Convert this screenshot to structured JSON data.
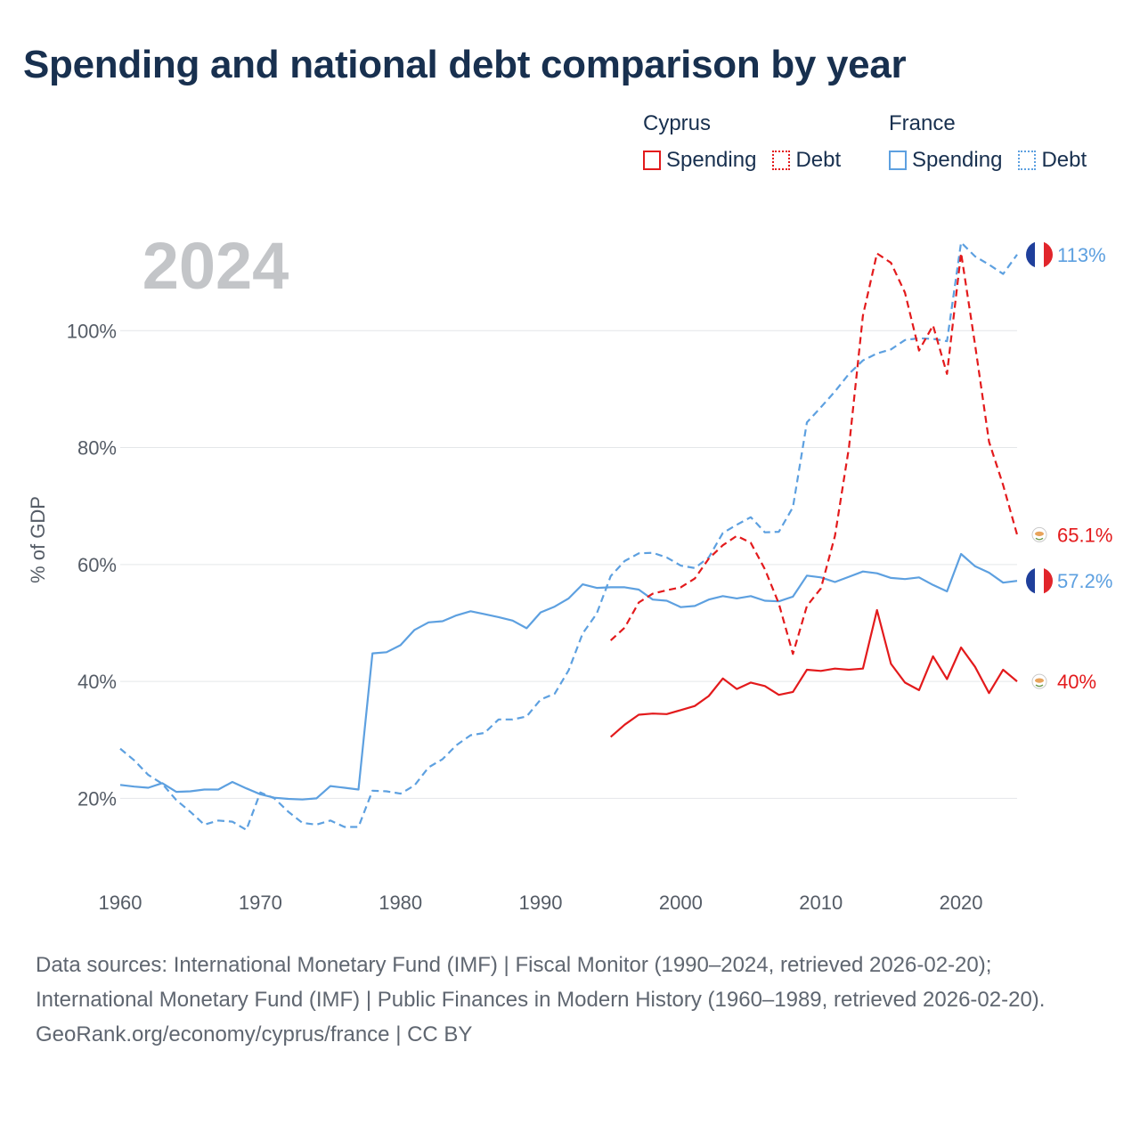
{
  "title": "Spending and national debt comparison by year",
  "legend": {
    "groups": [
      {
        "name": "Cyprus",
        "items": [
          {
            "label": "Spending",
            "style": "solid",
            "color": "#e31a1c"
          },
          {
            "label": "Debt",
            "style": "dotted",
            "color": "#e31a1c"
          }
        ]
      },
      {
        "name": "France",
        "items": [
          {
            "label": "Spending",
            "style": "solid",
            "color": "#5da0e0"
          },
          {
            "label": "Debt",
            "style": "dotted",
            "color": "#5da0e0"
          }
        ]
      }
    ]
  },
  "footer": {
    "sources": "Data sources: International Monetary Fund (IMF) | Fiscal Monitor (1990–2024, retrieved 2026-02-20); International Monetary Fund (IMF) | Public Finances in Modern History (1960–1989, retrieved 2026-02-20).",
    "credit": "GeoRank.org/economy/cyprus/france | CC BY"
  },
  "chart_data": {
    "type": "line",
    "title": "Spending and national debt comparison by year",
    "current_year_label": "2024",
    "xlabel": "",
    "ylabel": "% of GDP",
    "xlim": [
      1960,
      2024
    ],
    "ylim": [
      10,
      120
    ],
    "x_ticks": [
      1960,
      1970,
      1980,
      1990,
      2000,
      2010,
      2020
    ],
    "y_ticks": [
      20,
      40,
      60,
      80,
      100
    ],
    "y_tick_labels": [
      "20%",
      "40%",
      "60%",
      "80%",
      "100%"
    ],
    "grid": true,
    "colors": {
      "cyprus": "#e31a1c",
      "france": "#5da0e0"
    },
    "series": [
      {
        "name": "France Spending",
        "country": "France",
        "metric": "Spending",
        "style": "solid",
        "color": "#5da0e0",
        "end_label": "57.2%",
        "end_value": 57.2,
        "x": [
          1960,
          1961,
          1962,
          1963,
          1964,
          1965,
          1966,
          1967,
          1968,
          1969,
          1970,
          1971,
          1972,
          1973,
          1974,
          1975,
          1976,
          1977,
          1978,
          1979,
          1980,
          1981,
          1982,
          1983,
          1984,
          1985,
          1986,
          1987,
          1988,
          1989,
          1990,
          1991,
          1992,
          1993,
          1994,
          1995,
          1996,
          1997,
          1998,
          1999,
          2000,
          2001,
          2002,
          2003,
          2004,
          2005,
          2006,
          2007,
          2008,
          2009,
          2010,
          2011,
          2012,
          2013,
          2014,
          2015,
          2016,
          2017,
          2018,
          2019,
          2020,
          2021,
          2022,
          2023,
          2024
        ],
        "y": [
          22.3,
          22.0,
          21.8,
          22.6,
          21.1,
          21.2,
          21.5,
          21.5,
          22.8,
          21.7,
          20.7,
          20.1,
          19.9,
          19.8,
          20.0,
          22.1,
          21.8,
          21.5,
          44.8,
          45.0,
          46.2,
          48.8,
          50.1,
          50.3,
          51.3,
          52.0,
          51.5,
          51.0,
          50.4,
          49.1,
          51.8,
          52.8,
          54.2,
          56.6,
          56.0,
          56.1,
          56.1,
          55.7,
          54.0,
          53.8,
          52.7,
          52.9,
          54.0,
          54.6,
          54.2,
          54.6,
          53.8,
          53.7,
          54.5,
          58.1,
          57.8,
          57.0,
          57.9,
          58.8,
          58.5,
          57.7,
          57.5,
          57.8,
          56.5,
          55.4,
          61.8,
          59.7,
          58.6,
          56.9,
          57.2
        ]
      },
      {
        "name": "France Debt",
        "country": "France",
        "metric": "Debt",
        "style": "dotted",
        "color": "#5da0e0",
        "end_label": "113%",
        "end_value": 113,
        "x": [
          1960,
          1961,
          1962,
          1963,
          1964,
          1965,
          1966,
          1967,
          1968,
          1969,
          1970,
          1971,
          1972,
          1973,
          1974,
          1975,
          1976,
          1977,
          1978,
          1979,
          1980,
          1981,
          1982,
          1983,
          1984,
          1985,
          1986,
          1987,
          1988,
          1989,
          1990,
          1991,
          1992,
          1993,
          1994,
          1995,
          1996,
          1997,
          1998,
          1999,
          2000,
          2001,
          2002,
          2003,
          2004,
          2005,
          2006,
          2007,
          2008,
          2009,
          2010,
          2011,
          2012,
          2013,
          2014,
          2015,
          2016,
          2017,
          2018,
          2019,
          2020,
          2021,
          2022,
          2023,
          2024
        ],
        "y": [
          28.5,
          26.5,
          24.0,
          22.5,
          19.7,
          17.7,
          15.5,
          16.2,
          16.0,
          14.6,
          21.0,
          20.0,
          17.7,
          15.8,
          15.5,
          16.2,
          15.1,
          15.1,
          21.3,
          21.2,
          20.8,
          22.2,
          25.3,
          26.7,
          29.1,
          30.8,
          31.2,
          33.5,
          33.5,
          34.0,
          36.9,
          37.9,
          41.9,
          48.2,
          51.6,
          58.0,
          60.6,
          61.9,
          62.0,
          61.2,
          59.8,
          59.4,
          61.2,
          65.4,
          66.8,
          68.1,
          65.5,
          65.6,
          69.8,
          84.3,
          86.9,
          89.6,
          92.6,
          94.9,
          96.1,
          96.8,
          98.4,
          98.7,
          98.6,
          98.2,
          115.1,
          112.7,
          111.3,
          109.7,
          113.0
        ]
      },
      {
        "name": "Cyprus Spending",
        "country": "Cyprus",
        "metric": "Spending",
        "style": "solid",
        "color": "#e31a1c",
        "end_label": "40%",
        "end_value": 40,
        "x": [
          1995,
          1996,
          1997,
          1998,
          1999,
          2000,
          2001,
          2002,
          2003,
          2004,
          2005,
          2006,
          2007,
          2008,
          2009,
          2010,
          2011,
          2012,
          2013,
          2014,
          2015,
          2016,
          2017,
          2018,
          2019,
          2020,
          2021,
          2022,
          2023,
          2024
        ],
        "y": [
          30.5,
          32.6,
          34.3,
          34.5,
          34.4,
          35.1,
          35.8,
          37.5,
          40.5,
          38.7,
          39.8,
          39.2,
          37.7,
          38.2,
          42.0,
          41.8,
          42.2,
          42.0,
          42.2,
          52.2,
          43.0,
          39.8,
          38.5,
          44.3,
          40.4,
          45.8,
          42.5,
          38.0,
          42.0,
          40.0
        ]
      },
      {
        "name": "Cyprus Debt",
        "country": "Cyprus",
        "metric": "Debt",
        "style": "dotted",
        "color": "#e31a1c",
        "end_label": "65.1%",
        "end_value": 65.1,
        "x": [
          1995,
          1996,
          1997,
          1998,
          1999,
          2000,
          2001,
          2002,
          2003,
          2004,
          2005,
          2006,
          2007,
          2008,
          2009,
          2010,
          2011,
          2012,
          2013,
          2014,
          2015,
          2016,
          2017,
          2018,
          2019,
          2020,
          2021,
          2022,
          2023,
          2024
        ],
        "y": [
          47.0,
          49.2,
          53.5,
          55.0,
          55.6,
          56.1,
          57.6,
          61.0,
          63.3,
          64.9,
          63.7,
          59.2,
          53.3,
          44.7,
          52.9,
          55.9,
          64.9,
          80.0,
          102.6,
          113.2,
          111.6,
          106.5,
          96.6,
          100.9,
          92.6,
          113.3,
          97.6,
          81.0,
          73.6,
          65.1
        ]
      }
    ]
  }
}
